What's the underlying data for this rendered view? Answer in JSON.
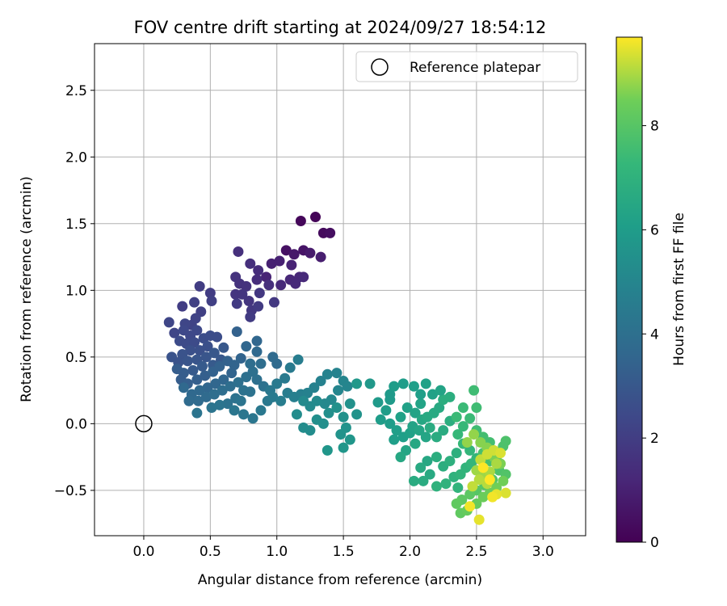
{
  "chart_data": {
    "type": "scatter",
    "title": "FOV centre drift starting at 2024/09/27 18:54:12",
    "xlabel": "Angular distance from reference (arcmin)",
    "ylabel": "Rotation from reference (arcmin)",
    "xlim": [
      -0.37,
      3.32
    ],
    "ylim": [
      -0.84,
      2.85
    ],
    "xticks": [
      "0.0",
      "0.5",
      "1.0",
      "1.5",
      "2.0",
      "2.5",
      "3.0"
    ],
    "yticks": [
      "−0.5",
      "0.0",
      "0.5",
      "1.0",
      "1.5",
      "2.0",
      "2.5"
    ],
    "grid": true,
    "legend": {
      "position": "top-right",
      "entries": [
        {
          "label": "Reference platepar",
          "marker": "hollow-circle"
        }
      ]
    },
    "reference_point": {
      "x": 0.0,
      "y": 0.0
    },
    "colorbar": {
      "label": "Hours from first FF file",
      "range": [
        0,
        9.7
      ],
      "ticks": [
        "0",
        "2",
        "4",
        "6",
        "8"
      ],
      "colormap": "viridis"
    },
    "points": [
      [
        1.29,
        1.55,
        0.1
      ],
      [
        1.18,
        1.52,
        0.2
      ],
      [
        1.35,
        1.43,
        0.3
      ],
      [
        1.4,
        1.43,
        0.4
      ],
      [
        1.07,
        1.3,
        0.5
      ],
      [
        1.2,
        1.3,
        0.6
      ],
      [
        1.13,
        1.27,
        0.7
      ],
      [
        1.25,
        1.28,
        0.8
      ],
      [
        1.33,
        1.25,
        0.9
      ],
      [
        0.96,
        1.2,
        1.0
      ],
      [
        1.02,
        1.22,
        1.0
      ],
      [
        1.11,
        1.19,
        1.1
      ],
      [
        0.92,
        1.1,
        1.1
      ],
      [
        1.1,
        1.08,
        1.2
      ],
      [
        1.17,
        1.1,
        1.2
      ],
      [
        1.2,
        1.1,
        1.3
      ],
      [
        1.03,
        1.04,
        1.3
      ],
      [
        1.14,
        1.05,
        1.3
      ],
      [
        0.85,
        1.08,
        1.4
      ],
      [
        0.86,
        1.15,
        1.4
      ],
      [
        0.94,
        1.04,
        1.5
      ],
      [
        0.8,
        1.2,
        1.5
      ],
      [
        0.71,
        1.29,
        1.5
      ],
      [
        0.69,
        1.1,
        1.6
      ],
      [
        0.72,
        1.05,
        1.6
      ],
      [
        0.77,
        1.03,
        1.6
      ],
      [
        0.69,
        0.97,
        1.7
      ],
      [
        0.74,
        0.97,
        1.7
      ],
      [
        0.79,
        0.92,
        1.7
      ],
      [
        0.87,
        0.98,
        1.8
      ],
      [
        0.98,
        0.91,
        1.8
      ],
      [
        0.81,
        0.85,
        1.8
      ],
      [
        0.86,
        0.88,
        1.9
      ],
      [
        0.8,
        0.8,
        1.9
      ],
      [
        0.7,
        0.9,
        1.9
      ],
      [
        0.5,
        0.98,
        2.0
      ],
      [
        0.42,
        1.03,
        2.0
      ],
      [
        0.29,
        0.88,
        2.0
      ],
      [
        0.38,
        0.91,
        2.1
      ],
      [
        0.43,
        0.84,
        2.1
      ],
      [
        0.51,
        0.92,
        2.1
      ],
      [
        0.39,
        0.79,
        2.2
      ],
      [
        0.36,
        0.74,
        2.2
      ],
      [
        0.31,
        0.75,
        2.3
      ],
      [
        0.19,
        0.76,
        2.3
      ],
      [
        0.23,
        0.68,
        2.3
      ],
      [
        0.3,
        0.7,
        2.4
      ],
      [
        0.35,
        0.66,
        2.4
      ],
      [
        0.4,
        0.7,
        2.4
      ],
      [
        0.27,
        0.62,
        2.5
      ],
      [
        0.32,
        0.6,
        2.5
      ],
      [
        0.38,
        0.61,
        2.5
      ],
      [
        0.45,
        0.64,
        2.6
      ],
      [
        0.5,
        0.66,
        2.6
      ],
      [
        0.55,
        0.65,
        2.6
      ],
      [
        0.48,
        0.58,
        2.7
      ],
      [
        0.42,
        0.55,
        2.7
      ],
      [
        0.35,
        0.55,
        2.7
      ],
      [
        0.29,
        0.52,
        2.8
      ],
      [
        0.21,
        0.5,
        2.8
      ],
      [
        0.26,
        0.46,
        2.8
      ],
      [
        0.33,
        0.47,
        2.9
      ],
      [
        0.4,
        0.48,
        2.9
      ],
      [
        0.47,
        0.5,
        2.9
      ],
      [
        0.53,
        0.53,
        3.0
      ],
      [
        0.6,
        0.57,
        3.0
      ],
      [
        0.58,
        0.48,
        3.0
      ],
      [
        0.52,
        0.44,
        3.1
      ],
      [
        0.44,
        0.43,
        3.1
      ],
      [
        0.37,
        0.4,
        3.1
      ],
      [
        0.3,
        0.38,
        3.2
      ],
      [
        0.25,
        0.41,
        3.2
      ],
      [
        0.28,
        0.33,
        3.2
      ],
      [
        0.33,
        0.3,
        3.3
      ],
      [
        0.4,
        0.33,
        3.3
      ],
      [
        0.46,
        0.36,
        3.3
      ],
      [
        0.52,
        0.39,
        3.4
      ],
      [
        0.57,
        0.43,
        3.4
      ],
      [
        0.63,
        0.47,
        3.4
      ],
      [
        0.68,
        0.44,
        3.5
      ],
      [
        0.73,
        0.49,
        3.5
      ],
      [
        0.66,
        0.38,
        3.5
      ],
      [
        0.6,
        0.33,
        3.6
      ],
      [
        0.54,
        0.3,
        3.6
      ],
      [
        0.48,
        0.27,
        3.6
      ],
      [
        0.42,
        0.25,
        3.7
      ],
      [
        0.36,
        0.22,
        3.7
      ],
      [
        0.3,
        0.27,
        3.7
      ],
      [
        0.34,
        0.17,
        3.8
      ],
      [
        0.41,
        0.17,
        3.8
      ],
      [
        0.47,
        0.2,
        3.8
      ],
      [
        0.53,
        0.22,
        3.9
      ],
      [
        0.59,
        0.25,
        3.9
      ],
      [
        0.65,
        0.28,
        3.9
      ],
      [
        0.71,
        0.31,
        4.0
      ],
      [
        0.77,
        0.35,
        4.0
      ],
      [
        0.82,
        0.39,
        4.0
      ],
      [
        0.75,
        0.25,
        4.1
      ],
      [
        0.69,
        0.19,
        4.1
      ],
      [
        0.63,
        0.15,
        4.1
      ],
      [
        0.57,
        0.14,
        4.2
      ],
      [
        0.51,
        0.12,
        4.2
      ],
      [
        0.4,
        0.08,
        4.2
      ],
      [
        0.7,
        0.69,
        3.4
      ],
      [
        0.85,
        0.62,
        3.6
      ],
      [
        0.77,
        0.58,
        3.6
      ],
      [
        0.85,
        0.54,
        3.7
      ],
      [
        0.97,
        0.5,
        3.8
      ],
      [
        1.0,
        0.45,
        3.8
      ],
      [
        0.88,
        0.45,
        3.9
      ],
      [
        0.8,
        0.45,
        3.9
      ],
      [
        0.85,
        0.33,
        4.0
      ],
      [
        0.9,
        0.28,
        4.1
      ],
      [
        0.8,
        0.24,
        4.1
      ],
      [
        0.73,
        0.17,
        4.2
      ],
      [
        0.68,
        0.1,
        4.3
      ],
      [
        0.75,
        0.07,
        4.3
      ],
      [
        0.82,
        0.04,
        4.3
      ],
      [
        0.88,
        0.1,
        4.4
      ],
      [
        0.93,
        0.17,
        4.4
      ],
      [
        0.95,
        0.25,
        4.4
      ],
      [
        1.0,
        0.3,
        4.5
      ],
      [
        1.06,
        0.34,
        4.5
      ],
      [
        1.1,
        0.42,
        4.5
      ],
      [
        1.16,
        0.48,
        4.6
      ],
      [
        0.97,
        0.2,
        4.5
      ],
      [
        1.03,
        0.17,
        4.6
      ],
      [
        1.08,
        0.23,
        4.6
      ],
      [
        1.13,
        0.2,
        4.7
      ],
      [
        1.18,
        0.22,
        4.7
      ],
      [
        1.23,
        0.23,
        4.8
      ],
      [
        1.28,
        0.27,
        4.8
      ],
      [
        1.33,
        0.32,
        4.8
      ],
      [
        1.38,
        0.37,
        4.9
      ],
      [
        1.45,
        0.38,
        4.9
      ],
      [
        1.5,
        0.32,
        5.0
      ],
      [
        1.53,
        0.28,
        5.0
      ],
      [
        1.46,
        0.25,
        5.0
      ],
      [
        1.41,
        0.18,
        5.1
      ],
      [
        1.36,
        0.15,
        5.1
      ],
      [
        1.3,
        0.17,
        5.2
      ],
      [
        1.25,
        0.13,
        5.2
      ],
      [
        1.2,
        0.17,
        5.2
      ],
      [
        1.15,
        0.07,
        5.3
      ],
      [
        1.2,
        -0.03,
        5.3
      ],
      [
        1.25,
        -0.05,
        5.3
      ],
      [
        1.3,
        0.03,
        5.4
      ],
      [
        1.35,
        0.0,
        5.4
      ],
      [
        1.39,
        0.08,
        5.4
      ],
      [
        1.45,
        0.12,
        5.5
      ],
      [
        1.5,
        0.05,
        5.5
      ],
      [
        1.55,
        0.15,
        5.5
      ],
      [
        1.6,
        0.07,
        5.6
      ],
      [
        1.52,
        -0.03,
        5.6
      ],
      [
        1.48,
        -0.08,
        5.6
      ],
      [
        1.55,
        -0.12,
        5.7
      ],
      [
        1.5,
        -0.18,
        5.7
      ],
      [
        1.38,
        -0.2,
        5.7
      ],
      [
        1.6,
        0.3,
        5.8
      ],
      [
        1.7,
        0.3,
        5.8
      ],
      [
        1.76,
        0.16,
        5.9
      ],
      [
        1.85,
        0.18,
        5.9
      ],
      [
        1.82,
        0.1,
        6.0
      ],
      [
        1.78,
        0.03,
        6.0
      ],
      [
        1.85,
        0.0,
        6.0
      ],
      [
        1.9,
        -0.05,
        6.1
      ],
      [
        1.88,
        -0.12,
        6.1
      ],
      [
        1.95,
        -0.1,
        6.1
      ],
      [
        2.0,
        -0.07,
        6.2
      ],
      [
        1.93,
        0.05,
        6.2
      ],
      [
        1.98,
        0.12,
        6.2
      ],
      [
        2.04,
        0.08,
        6.3
      ],
      [
        2.08,
        0.15,
        6.3
      ],
      [
        2.02,
        -0.02,
        6.3
      ],
      [
        2.07,
        -0.05,
        6.4
      ],
      [
        2.12,
        -0.1,
        6.4
      ],
      [
        1.97,
        -0.2,
        6.4
      ],
      [
        1.93,
        -0.25,
        6.5
      ],
      [
        2.04,
        -0.15,
        6.5
      ],
      [
        2.09,
        0.03,
        6.5
      ],
      [
        2.13,
        0.05,
        6.6
      ],
      [
        2.18,
        0.08,
        6.6
      ],
      [
        2.22,
        0.12,
        6.6
      ],
      [
        2.15,
        -0.03,
        6.7
      ],
      [
        2.2,
        -0.1,
        6.7
      ],
      [
        2.25,
        -0.05,
        6.7
      ],
      [
        2.3,
        0.02,
        6.8
      ],
      [
        2.25,
        0.18,
        6.8
      ],
      [
        2.3,
        0.2,
        6.8
      ],
      [
        1.85,
        0.22,
        5.9
      ],
      [
        1.88,
        0.28,
        6.0
      ],
      [
        1.95,
        0.3,
        6.0
      ],
      [
        2.03,
        0.28,
        6.1
      ],
      [
        2.08,
        0.22,
        6.1
      ],
      [
        2.12,
        0.3,
        6.2
      ],
      [
        2.17,
        0.22,
        6.2
      ],
      [
        2.23,
        0.25,
        6.3
      ],
      [
        2.13,
        -0.28,
        6.5
      ],
      [
        2.08,
        -0.33,
        6.6
      ],
      [
        2.15,
        -0.38,
        6.6
      ],
      [
        2.1,
        -0.43,
        6.7
      ],
      [
        2.03,
        -0.43,
        6.7
      ],
      [
        2.2,
        -0.25,
        6.8
      ],
      [
        2.25,
        -0.32,
        6.8
      ],
      [
        2.3,
        -0.28,
        6.9
      ],
      [
        2.35,
        -0.22,
        6.9
      ],
      [
        2.2,
        -0.47,
        7.0
      ],
      [
        2.27,
        -0.45,
        7.0
      ],
      [
        2.33,
        -0.4,
        7.0
      ],
      [
        2.36,
        -0.48,
        7.1
      ],
      [
        2.38,
        -0.38,
        7.1
      ],
      [
        2.42,
        -0.33,
        7.1
      ],
      [
        2.46,
        -0.3,
        7.2
      ],
      [
        2.5,
        -0.26,
        7.2
      ],
      [
        2.45,
        -0.2,
        7.2
      ],
      [
        2.4,
        -0.15,
        7.3
      ],
      [
        2.36,
        -0.08,
        7.3
      ],
      [
        2.4,
        -0.02,
        7.3
      ],
      [
        2.45,
        0.04,
        7.4
      ],
      [
        2.35,
        0.05,
        7.4
      ],
      [
        2.48,
        0.25,
        7.5
      ],
      [
        2.4,
        0.12,
        7.4
      ],
      [
        2.5,
        0.12,
        7.5
      ],
      [
        2.5,
        -0.05,
        7.5
      ],
      [
        2.55,
        -0.1,
        7.6
      ],
      [
        2.6,
        -0.14,
        7.6
      ],
      [
        2.55,
        -0.22,
        7.7
      ],
      [
        2.6,
        -0.28,
        7.7
      ],
      [
        2.65,
        -0.25,
        7.7
      ],
      [
        2.7,
        -0.17,
        7.8
      ],
      [
        2.72,
        -0.13,
        7.8
      ],
      [
        2.67,
        -0.35,
        7.8
      ],
      [
        2.72,
        -0.38,
        7.9
      ],
      [
        2.62,
        -0.42,
        7.9
      ],
      [
        2.56,
        -0.46,
        8.0
      ],
      [
        2.5,
        -0.5,
        8.0
      ],
      [
        2.45,
        -0.53,
        8.1
      ],
      [
        2.39,
        -0.57,
        8.1
      ],
      [
        2.35,
        -0.6,
        8.2
      ],
      [
        2.38,
        -0.67,
        8.2
      ],
      [
        2.43,
        -0.65,
        8.3
      ],
      [
        2.5,
        -0.6,
        8.3
      ],
      [
        2.55,
        -0.55,
        8.4
      ],
      [
        2.6,
        -0.52,
        8.4
      ],
      [
        2.65,
        -0.48,
        8.5
      ],
      [
        2.7,
        -0.43,
        8.5
      ],
      [
        2.68,
        -0.3,
        8.6
      ],
      [
        2.63,
        -0.25,
        8.6
      ],
      [
        2.58,
        -0.18,
        8.7
      ],
      [
        2.53,
        -0.14,
        8.7
      ],
      [
        2.48,
        -0.08,
        8.8
      ],
      [
        2.43,
        -0.14,
        8.8
      ],
      [
        2.5,
        -0.35,
        8.9
      ],
      [
        2.55,
        -0.4,
        8.9
      ],
      [
        2.6,
        -0.36,
        9.0
      ],
      [
        2.65,
        -0.3,
        9.0
      ],
      [
        2.58,
        -0.45,
        9.1
      ],
      [
        2.52,
        -0.42,
        9.1
      ],
      [
        2.47,
        -0.47,
        9.2
      ],
      [
        2.53,
        -0.27,
        9.2
      ],
      [
        2.58,
        -0.23,
        9.3
      ],
      [
        2.63,
        -0.2,
        9.3
      ],
      [
        2.68,
        -0.22,
        9.4
      ],
      [
        2.72,
        -0.52,
        9.4
      ],
      [
        2.65,
        -0.53,
        9.5
      ],
      [
        2.52,
        -0.72,
        9.5
      ],
      [
        2.45,
        -0.62,
        9.6
      ],
      [
        2.62,
        -0.55,
        9.6
      ],
      [
        2.55,
        -0.33,
        9.7
      ],
      [
        2.6,
        -0.42,
        9.7
      ]
    ]
  }
}
